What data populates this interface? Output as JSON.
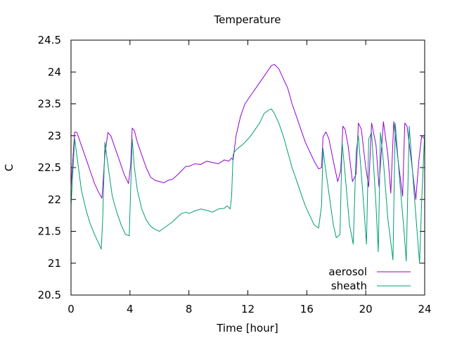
{
  "chart_data": {
    "type": "line",
    "title": "Temperature",
    "xlabel": "Time [hour]",
    "ylabel": "C",
    "xlim": [
      0,
      24
    ],
    "ylim": [
      20.5,
      24.5
    ],
    "xticks": [
      0,
      4,
      8,
      12,
      16,
      20,
      24
    ],
    "yticks": [
      20.5,
      21,
      21.5,
      22,
      22.5,
      23,
      23.5,
      24,
      24.5
    ],
    "xtick_labels": [
      "0",
      "4",
      "8",
      "12",
      "16",
      "20",
      "24"
    ],
    "ytick_labels": [
      "20.5",
      "21",
      "21.5",
      "22",
      "22.5",
      "23",
      "23.5",
      "24",
      "24.5"
    ],
    "grid": false,
    "legend_position": "bottom-right",
    "series": [
      {
        "name": "aerosol",
        "color": "#9400d3",
        "x": [
          0.0,
          0.25,
          0.4,
          0.7,
          1.0,
          1.3,
          1.6,
          1.9,
          2.1,
          2.3,
          2.5,
          2.7,
          3.0,
          3.3,
          3.6,
          3.9,
          4.05,
          4.15,
          4.3,
          4.5,
          4.8,
          5.1,
          5.4,
          5.7,
          6.0,
          6.3,
          6.6,
          6.9,
          7.2,
          7.5,
          7.8,
          8.0,
          8.4,
          8.8,
          9.2,
          9.6,
          10.0,
          10.4,
          10.7,
          10.9,
          11.0,
          11.2,
          11.5,
          11.8,
          12.1,
          12.4,
          12.7,
          13.0,
          13.3,
          13.6,
          13.8,
          14.1,
          14.4,
          14.7,
          15.0,
          15.3,
          15.6,
          15.9,
          16.2,
          16.5,
          16.8,
          17.0,
          17.1,
          17.3,
          17.5,
          17.8,
          18.1,
          18.3,
          18.45,
          18.6,
          18.8,
          19.1,
          19.35,
          19.5,
          19.7,
          20.0,
          20.2,
          20.4,
          20.7,
          20.9,
          21.2,
          21.5,
          21.7,
          21.9,
          22.2,
          22.5,
          22.65,
          22.8,
          23.1,
          23.4,
          23.6,
          23.8,
          24.0
        ],
        "y": [
          22.2,
          23.06,
          23.05,
          22.85,
          22.65,
          22.45,
          22.25,
          22.1,
          22.02,
          22.7,
          23.05,
          23.0,
          22.8,
          22.6,
          22.4,
          22.25,
          22.55,
          23.12,
          23.08,
          22.9,
          22.7,
          22.5,
          22.35,
          22.3,
          22.28,
          22.26,
          22.3,
          22.32,
          22.38,
          22.45,
          22.52,
          22.52,
          22.56,
          22.55,
          22.6,
          22.58,
          22.56,
          22.62,
          22.6,
          22.65,
          22.62,
          23.0,
          23.3,
          23.5,
          23.6,
          23.7,
          23.8,
          23.9,
          24.0,
          24.1,
          24.12,
          24.05,
          23.9,
          23.75,
          23.5,
          23.3,
          23.1,
          22.9,
          22.75,
          22.6,
          22.48,
          22.5,
          22.98,
          23.06,
          22.95,
          22.6,
          22.28,
          22.45,
          23.15,
          23.1,
          22.85,
          22.28,
          22.4,
          23.2,
          23.1,
          22.5,
          22.2,
          23.2,
          22.85,
          22.2,
          23.22,
          22.7,
          22.1,
          23.22,
          22.6,
          22.05,
          23.2,
          23.15,
          22.6,
          22.0,
          22.6,
          23.0,
          22.95
        ]
      },
      {
        "name": "sheath",
        "color": "#009e73",
        "x": [
          0.0,
          0.25,
          0.45,
          0.7,
          1.0,
          1.3,
          1.6,
          1.9,
          2.05,
          2.15,
          2.3,
          2.5,
          2.8,
          3.1,
          3.4,
          3.7,
          3.95,
          4.15,
          4.3,
          4.5,
          4.8,
          5.1,
          5.4,
          5.7,
          6.0,
          6.3,
          6.6,
          6.9,
          7.2,
          7.5,
          7.8,
          8.0,
          8.4,
          8.8,
          9.2,
          9.6,
          10.0,
          10.4,
          10.6,
          10.8,
          10.9,
          11.0,
          11.1,
          11.3,
          11.6,
          11.9,
          12.2,
          12.5,
          12.8,
          13.1,
          13.4,
          13.6,
          13.8,
          14.1,
          14.4,
          14.7,
          15.0,
          15.3,
          15.6,
          15.9,
          16.2,
          16.5,
          16.8,
          17.0,
          17.1,
          17.2,
          17.5,
          17.8,
          18.0,
          18.25,
          18.4,
          18.6,
          18.9,
          19.15,
          19.35,
          19.5,
          19.8,
          20.05,
          20.2,
          20.4,
          20.7,
          20.85,
          21.0,
          21.2,
          21.5,
          21.85,
          22.0,
          22.3,
          22.6,
          22.75,
          22.95,
          23.3,
          23.65,
          23.8,
          24.0
        ],
        "y": [
          21.9,
          22.95,
          22.6,
          22.15,
          21.85,
          21.62,
          21.45,
          21.3,
          21.22,
          21.7,
          22.9,
          22.55,
          22.05,
          21.8,
          21.6,
          21.45,
          21.43,
          22.95,
          22.5,
          22.15,
          21.85,
          21.68,
          21.58,
          21.53,
          21.5,
          21.55,
          21.6,
          21.65,
          21.72,
          21.78,
          21.8,
          21.78,
          21.82,
          21.85,
          21.83,
          21.8,
          21.85,
          21.86,
          21.9,
          21.85,
          22.05,
          22.7,
          22.75,
          22.8,
          22.85,
          22.92,
          23.0,
          23.1,
          23.2,
          23.35,
          23.4,
          23.42,
          23.35,
          23.2,
          23.0,
          22.75,
          22.5,
          22.3,
          22.1,
          21.9,
          21.75,
          21.6,
          21.55,
          21.9,
          22.8,
          22.6,
          22.1,
          21.6,
          21.4,
          21.45,
          22.9,
          22.4,
          21.6,
          21.3,
          22.75,
          23.0,
          22.1,
          21.3,
          22.95,
          23.05,
          21.9,
          21.18,
          23.05,
          22.6,
          21.7,
          21.05,
          23.2,
          22.3,
          21.5,
          21.03,
          23.15,
          22.05,
          21.0,
          22.0,
          23.05
        ]
      }
    ]
  }
}
